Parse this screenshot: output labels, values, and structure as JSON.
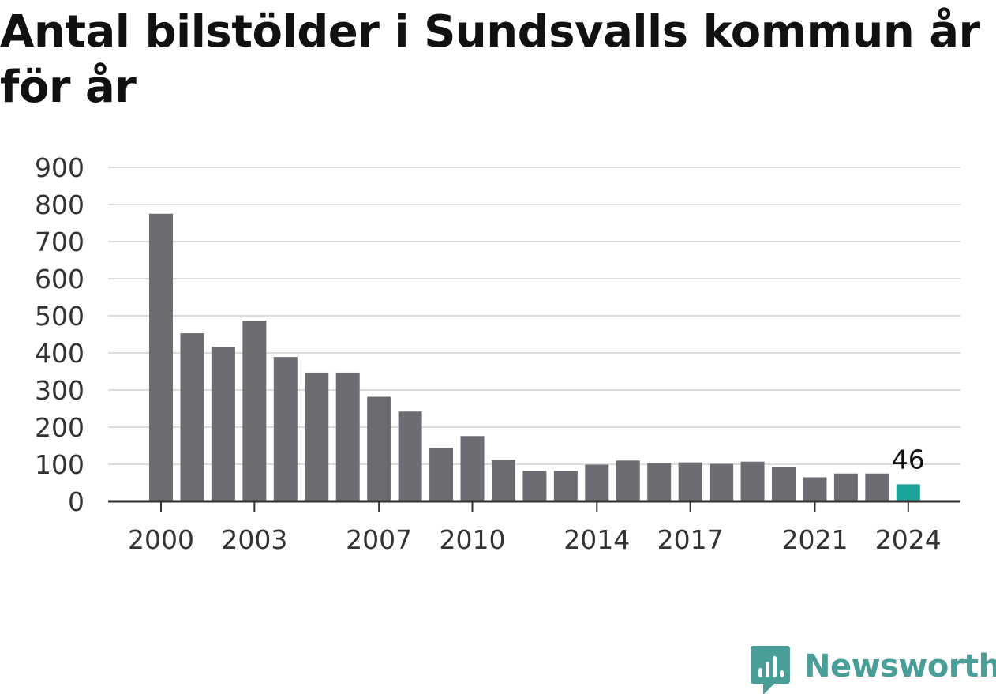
{
  "title": "Antal bilstölder i Sundsvalls kommun år för år",
  "colors": {
    "bar": "#6d6c72",
    "highlight": "#1ba39c",
    "grid": "#dddddd",
    "axis": "#333333",
    "brand": "#4a9e98"
  },
  "brand": {
    "name": "Newsworthy",
    "icon": "newsworthy-logo-icon"
  },
  "chart_data": {
    "type": "bar",
    "title": "Antal bilstölder i Sundsvalls kommun år för år",
    "xlabel": "",
    "ylabel": "",
    "grid": true,
    "ylim": [
      0,
      900
    ],
    "yticks": [
      0,
      100,
      200,
      300,
      400,
      500,
      600,
      700,
      800,
      900
    ],
    "xtick_labels": [
      "2000",
      "2003",
      "2007",
      "2010",
      "2014",
      "2017",
      "2021",
      "2024"
    ],
    "categories": [
      "2000",
      "2001",
      "2002",
      "2003",
      "2004",
      "2005",
      "2006",
      "2007",
      "2008",
      "2009",
      "2010",
      "2011",
      "2012",
      "2013",
      "2014",
      "2015",
      "2016",
      "2017",
      "2018",
      "2019",
      "2020",
      "2021",
      "2022",
      "2023",
      "2024"
    ],
    "values": [
      775,
      453,
      416,
      487,
      389,
      347,
      347,
      282,
      242,
      144,
      176,
      112,
      82,
      82,
      99,
      110,
      103,
      105,
      101,
      107,
      92,
      65,
      75,
      75,
      46
    ],
    "highlight_index": 24,
    "annotations": [
      {
        "category": "2024",
        "text": "46"
      }
    ]
  }
}
